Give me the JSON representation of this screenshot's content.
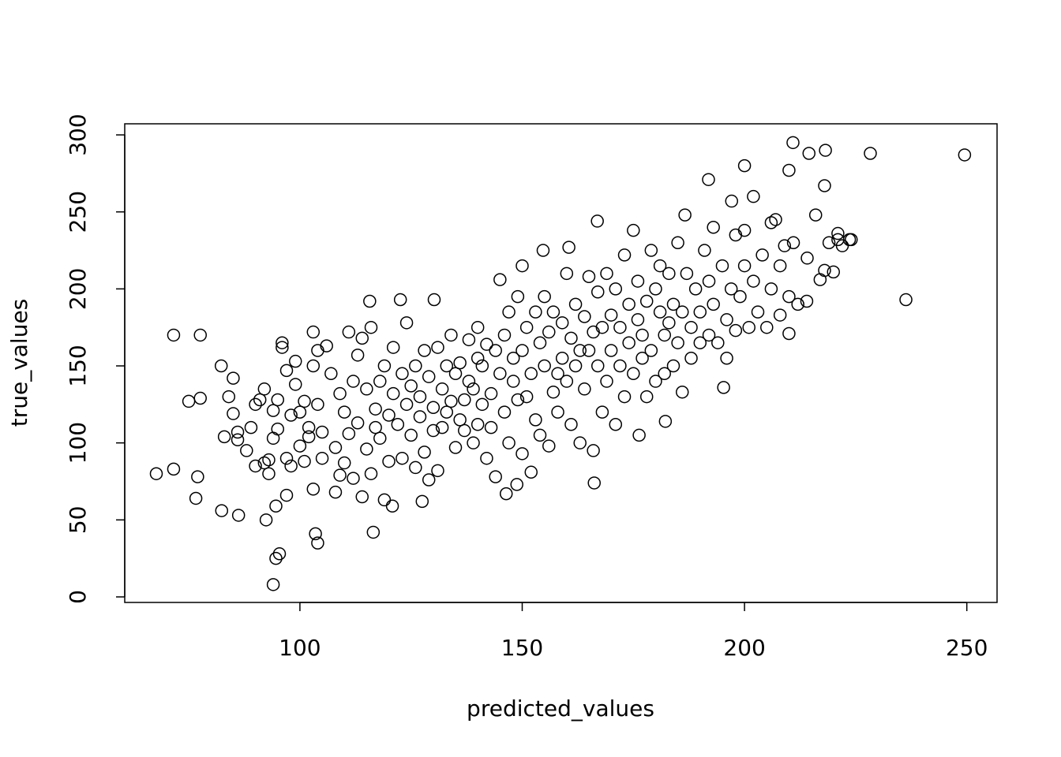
{
  "chart_data": {
    "type": "scatter",
    "x_label": "predicted_values",
    "y_label": "true_values",
    "xlim": [
      60.6,
      256.8
    ],
    "ylim": [
      -3.6,
      307.2
    ],
    "xticks": [
      100,
      150,
      200,
      250
    ],
    "yticks": [
      0,
      50,
      100,
      150,
      200,
      250,
      300
    ],
    "color": "#000000",
    "grid": false,
    "x": [
      67.7,
      71.6,
      71.6,
      77.6,
      75,
      77.6,
      77,
      76.6,
      82.4,
      86.2,
      82.3,
      85,
      94,
      94.6,
      95.4,
      103.5,
      104,
      116.5,
      92.4,
      94.6,
      97,
      249.5,
      236.3,
      228.3,
      210.9,
      218.2,
      214.5,
      200,
      210,
      191.9,
      166.2,
      148.8,
      146.4,
      127.5,
      120.8,
      115.7,
      122.6,
      130.2,
      154.7,
      160.5,
      166.9,
      186.6,
      195.3,
      182.2,
      176.3,
      197.1,
      223.6,
      221,
      210,
      218,
      214.1,
      83,
      84,
      85,
      86,
      86,
      88,
      89,
      90,
      90,
      91,
      92,
      92,
      93,
      93,
      94,
      94,
      95,
      95,
      96,
      96,
      97,
      97,
      98,
      98,
      99,
      99,
      100,
      100,
      101,
      101,
      102,
      102,
      103,
      103,
      103,
      104,
      104,
      105,
      105,
      106,
      107,
      108,
      108,
      109,
      109,
      110,
      110,
      111,
      111,
      112,
      112,
      113,
      113,
      114,
      114,
      115,
      115,
      116,
      116,
      117,
      117,
      118,
      118,
      119,
      119,
      120,
      120,
      121,
      121,
      122,
      123,
      123,
      124,
      124,
      125,
      125,
      126,
      126,
      127,
      127,
      128,
      128,
      129,
      129,
      130,
      130,
      131,
      131,
      132,
      132,
      133,
      133,
      134,
      134,
      135,
      135,
      136,
      136,
      137,
      137,
      138,
      138,
      139,
      139,
      140,
      140,
      140,
      141,
      141,
      142,
      142,
      143,
      143,
      144,
      144,
      145,
      145,
      146,
      146,
      147,
      147,
      148,
      148,
      149,
      149,
      150,
      150,
      150,
      151,
      151,
      152,
      152,
      153,
      153,
      154,
      154,
      155,
      155,
      156,
      156,
      157,
      157,
      158,
      158,
      159,
      159,
      160,
      160,
      161,
      161,
      162,
      162,
      163,
      163,
      164,
      164,
      165,
      165,
      166,
      166,
      167,
      167,
      168,
      168,
      169,
      169,
      170,
      170,
      171,
      171,
      172,
      172,
      173,
      173,
      174,
      174,
      175,
      175,
      176,
      176,
      177,
      177,
      178,
      178,
      179,
      179,
      180,
      180,
      181,
      181,
      182,
      182,
      183,
      183,
      184,
      184,
      185,
      185,
      186,
      186,
      187,
      188,
      188,
      189,
      190,
      190,
      191,
      192,
      192,
      193,
      193,
      194,
      195,
      196,
      196,
      197,
      198,
      198,
      199,
      200,
      200,
      201,
      202,
      202,
      203,
      204,
      205,
      206,
      206,
      207,
      208,
      208,
      209,
      210,
      211,
      212,
      214,
      216,
      217,
      218,
      219,
      220,
      221,
      222,
      224
    ],
    "values": [
      80,
      83,
      170,
      170,
      127,
      129,
      78,
      64,
      56,
      53,
      150,
      142,
      8,
      25,
      28,
      41,
      35,
      42,
      50,
      59,
      66,
      287,
      193,
      288,
      295,
      290,
      288,
      280,
      277,
      271,
      74,
      73,
      67,
      62,
      59,
      192,
      193,
      193,
      225,
      227,
      244,
      248,
      136,
      114,
      105,
      257,
      232,
      232,
      171,
      212,
      220,
      104,
      130,
      119,
      107,
      102,
      95,
      110,
      125,
      85,
      128,
      135,
      87,
      80,
      89,
      103,
      121,
      128,
      109,
      165,
      162,
      147,
      90,
      85,
      118,
      153,
      138,
      120,
      98,
      127,
      88,
      110,
      104,
      172,
      150,
      70,
      160,
      125,
      107,
      90,
      163,
      145,
      97,
      68,
      132,
      79,
      120,
      87,
      172,
      106,
      140,
      77,
      157,
      113,
      168,
      65,
      135,
      96,
      175,
      80,
      110,
      122,
      140,
      103,
      150,
      63,
      118,
      88,
      162,
      132,
      112,
      145,
      90,
      178,
      125,
      105,
      137,
      150,
      84,
      117,
      130,
      160,
      94,
      143,
      76,
      123,
      108,
      162,
      82,
      135,
      110,
      150,
      120,
      170,
      127,
      145,
      97,
      152,
      115,
      128,
      108,
      167,
      140,
      135,
      100,
      175,
      155,
      112,
      150,
      125,
      164,
      90,
      132,
      110,
      160,
      78,
      206,
      145,
      170,
      120,
      185,
      100,
      155,
      140,
      195,
      128,
      215,
      160,
      93,
      175,
      130,
      145,
      81,
      185,
      115,
      165,
      105,
      195,
      150,
      172,
      98,
      185,
      133,
      145,
      120,
      178,
      155,
      210,
      140,
      168,
      112,
      190,
      150,
      160,
      100,
      182,
      135,
      208,
      160,
      172,
      95,
      198,
      150,
      175,
      120,
      210,
      140,
      183,
      160,
      200,
      112,
      175,
      150,
      222,
      130,
      190,
      165,
      238,
      145,
      205,
      180,
      170,
      155,
      192,
      130,
      225,
      160,
      200,
      140,
      185,
      215,
      170,
      145,
      210,
      178,
      190,
      150,
      230,
      165,
      133,
      185,
      210,
      175,
      155,
      200,
      185,
      165,
      225,
      205,
      170,
      240,
      190,
      165,
      215,
      180,
      155,
      200,
      235,
      173,
      195,
      238,
      215,
      175,
      260,
      205,
      185,
      222,
      175,
      200,
      243,
      245,
      215,
      183,
      228,
      195,
      230,
      190,
      192,
      248,
      206,
      267,
      230,
      211,
      236,
      228,
      232
    ]
  }
}
